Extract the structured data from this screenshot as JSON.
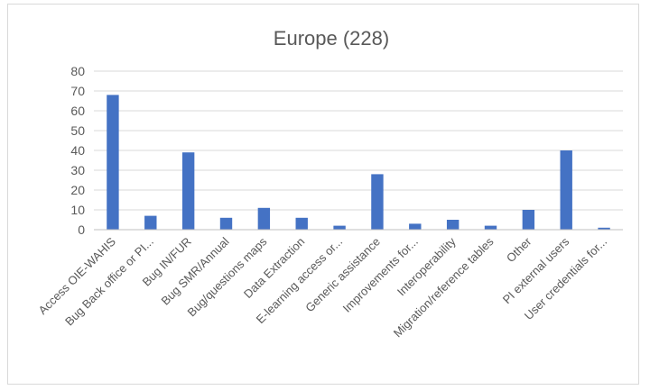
{
  "chart_data": {
    "type": "bar",
    "title": "Europe (228)",
    "xlabel": "",
    "ylabel": "",
    "ylim": [
      0,
      80
    ],
    "yticks": [
      0,
      10,
      20,
      30,
      40,
      50,
      60,
      70,
      80
    ],
    "grid": true,
    "legend": "none",
    "bar_color": "#4472c4",
    "categories": [
      "Access OIE-WAHIS",
      "Bug Back office or PI...",
      "Bug IN/FUR",
      "Bug SMR/Annual",
      "Bug/questions maps",
      "Data Extraction",
      "E-learning access or...",
      "Generic assistance",
      "Improvements for...",
      "Interoperability",
      "Migration/reference tables",
      "Other",
      "PI external users",
      "User credentials for..."
    ],
    "values": [
      68,
      7,
      39,
      6,
      11,
      6,
      2,
      28,
      3,
      5,
      2,
      10,
      40,
      1
    ]
  }
}
